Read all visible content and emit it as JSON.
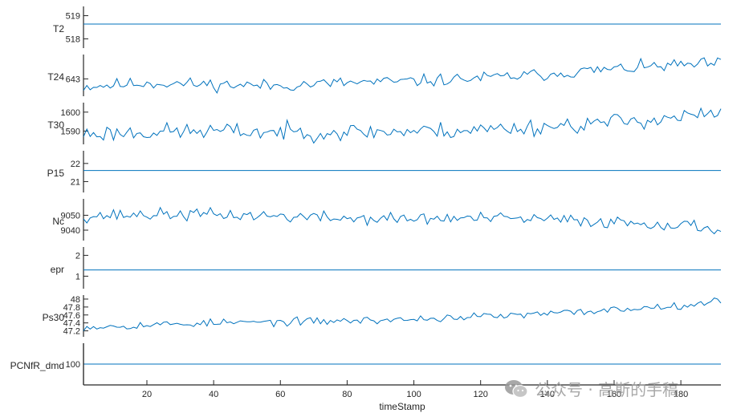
{
  "chart_data": {
    "type": "line",
    "xlabel": "timeStamp",
    "x_range": [
      1,
      192
    ],
    "x_ticks": [
      20,
      40,
      60,
      80,
      100,
      120,
      140,
      160,
      180
    ],
    "color": "#0072bd",
    "n_points": 192,
    "panels": [
      {
        "name": "T2",
        "ylim": [
          517.6,
          519.4
        ],
        "yticks": [
          518,
          519
        ],
        "constant": 518.64
      },
      {
        "name": "T24",
        "ylim": [
          640.5,
          646.5
        ],
        "yticks": [
          643
        ],
        "trend": [
          641.9,
          642.4,
          642.2,
          642.0,
          642.4,
          642.6,
          643.0,
          643.5,
          644.2,
          644.8,
          645.2
        ],
        "noise": 0.55,
        "seed": 11
      },
      {
        "name": "T30",
        "ylim": [
          1583,
          1605
        ],
        "yticks": [
          1590,
          1600
        ],
        "trend": [
          1588.5,
          1589.5,
          1590.0,
          1589.5,
          1589.5,
          1589.8,
          1590.5,
          1592.0,
          1594.0,
          1596.5,
          1599.0
        ],
        "noise": 2.8,
        "seed": 23
      },
      {
        "name": "P15",
        "ylim": [
          20.4,
          22.7
        ],
        "yticks": [
          21,
          22
        ],
        "constant": 21.61
      },
      {
        "name": "Nc",
        "ylim": [
          9033,
          9061
        ],
        "yticks": [
          9040,
          9050
        ],
        "trend": [
          9049.5,
          9050.5,
          9050.5,
          9049.5,
          9048.0,
          9047.5,
          9048.0,
          9047.5,
          9046.0,
          9044.5,
          9041.0
        ],
        "noise": 2.6,
        "seed": 37
      },
      {
        "name": "epr",
        "ylim": [
          0.4,
          2.4
        ],
        "yticks": [
          1,
          2
        ],
        "constant": 1.3
      },
      {
        "name": "Ps30",
        "ylim": [
          47.05,
          48.1
        ],
        "yticks": [
          47.2,
          47.4,
          47.6,
          47.8,
          48
        ],
        "trend": [
          47.3,
          47.35,
          47.4,
          47.42,
          47.45,
          47.48,
          47.55,
          47.6,
          47.7,
          47.8,
          47.95
        ],
        "noise": 0.06,
        "seed": 53
      },
      {
        "name": "PCNfR_dmd",
        "ylim": [
          99,
          101
        ],
        "yticks": [
          100
        ],
        "constant": 100
      }
    ]
  },
  "watermark": {
    "text": "公众号 · 高斯的手稿",
    "icon": "wechat-icon"
  }
}
